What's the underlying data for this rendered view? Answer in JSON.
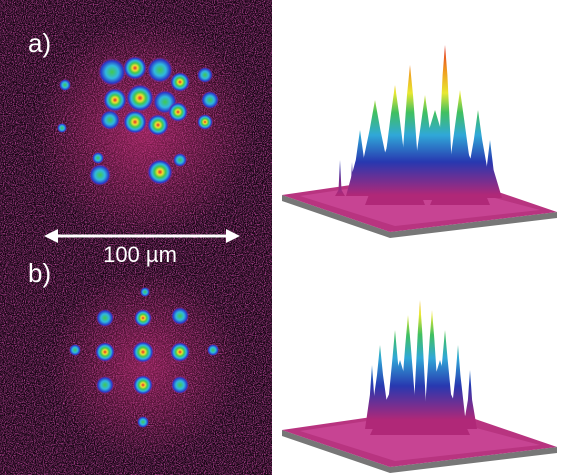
{
  "panels": [
    {
      "label": "a)"
    },
    {
      "label": "b)"
    }
  ],
  "scale_bar": {
    "label": "100 µm"
  }
}
